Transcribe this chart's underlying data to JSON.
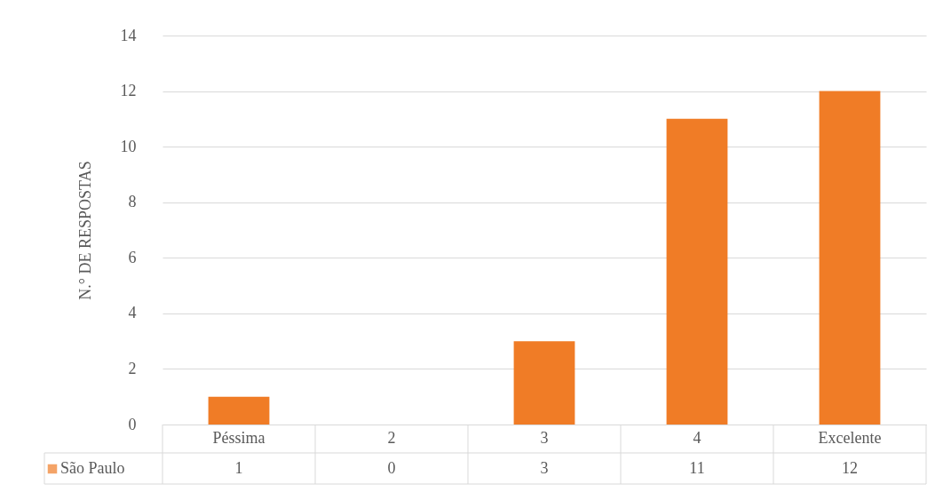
{
  "chart_data": {
    "type": "bar",
    "ylabel": "N.° DE RESPOSTAS",
    "categories": [
      "Péssima",
      "2",
      "3",
      "4",
      "Excelente"
    ],
    "series": [
      {
        "name": "São Paulo",
        "color": "#f07c26",
        "values": [
          1,
          0,
          3,
          11,
          12
        ]
      }
    ],
    "ylim": [
      0,
      14
    ],
    "yticks": [
      0,
      2,
      4,
      6,
      8,
      10,
      12,
      14
    ],
    "grid": "y",
    "data_labels": true,
    "legend": "bottom left"
  }
}
